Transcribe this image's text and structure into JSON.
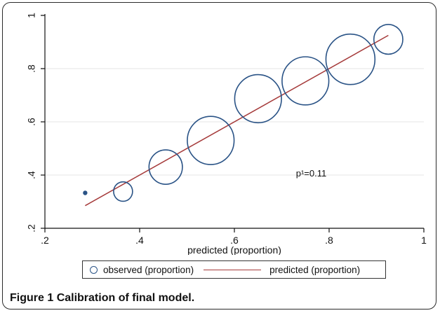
{
  "chart_data": {
    "type": "scatter",
    "xlabel": "predicted (proportion)",
    "ylabel": "",
    "xlim": [
      0.2,
      1.0
    ],
    "ylim": [
      0.2,
      1.0
    ],
    "x_ticks": [
      0.2,
      0.4,
      0.6,
      0.8,
      1.0
    ],
    "x_tick_labels": [
      ".2",
      ".4",
      ".6",
      ".8",
      "1"
    ],
    "y_ticks": [
      0.2,
      0.4,
      0.6,
      0.8,
      1.0
    ],
    "y_tick_labels": [
      ".2",
      ".4",
      ".6",
      ".8",
      "1"
    ],
    "grid": true,
    "legend_position": "bottom",
    "series": [
      {
        "name": "observed (proportion)",
        "type": "scatter",
        "color": "#2a5386",
        "x": [
          0.285,
          0.365,
          0.455,
          0.55,
          0.65,
          0.75,
          0.845,
          0.925
        ],
        "y": [
          0.333,
          0.338,
          0.43,
          0.53,
          0.687,
          0.754,
          0.835,
          0.91
        ],
        "relative_size": [
          0.03,
          0.17,
          0.3,
          0.42,
          0.42,
          0.42,
          0.44,
          0.26
        ]
      },
      {
        "name": "predicted (proportion)",
        "type": "line",
        "color": "#a53a3a",
        "x": [
          0.285,
          0.925
        ],
        "y": [
          0.285,
          0.925
        ]
      }
    ],
    "annotations": [
      {
        "text": "p¹=0.11",
        "x": 0.73,
        "y": 0.395
      }
    ]
  },
  "caption": {
    "label": "Figure 1",
    "text": "Calibration of final model."
  }
}
